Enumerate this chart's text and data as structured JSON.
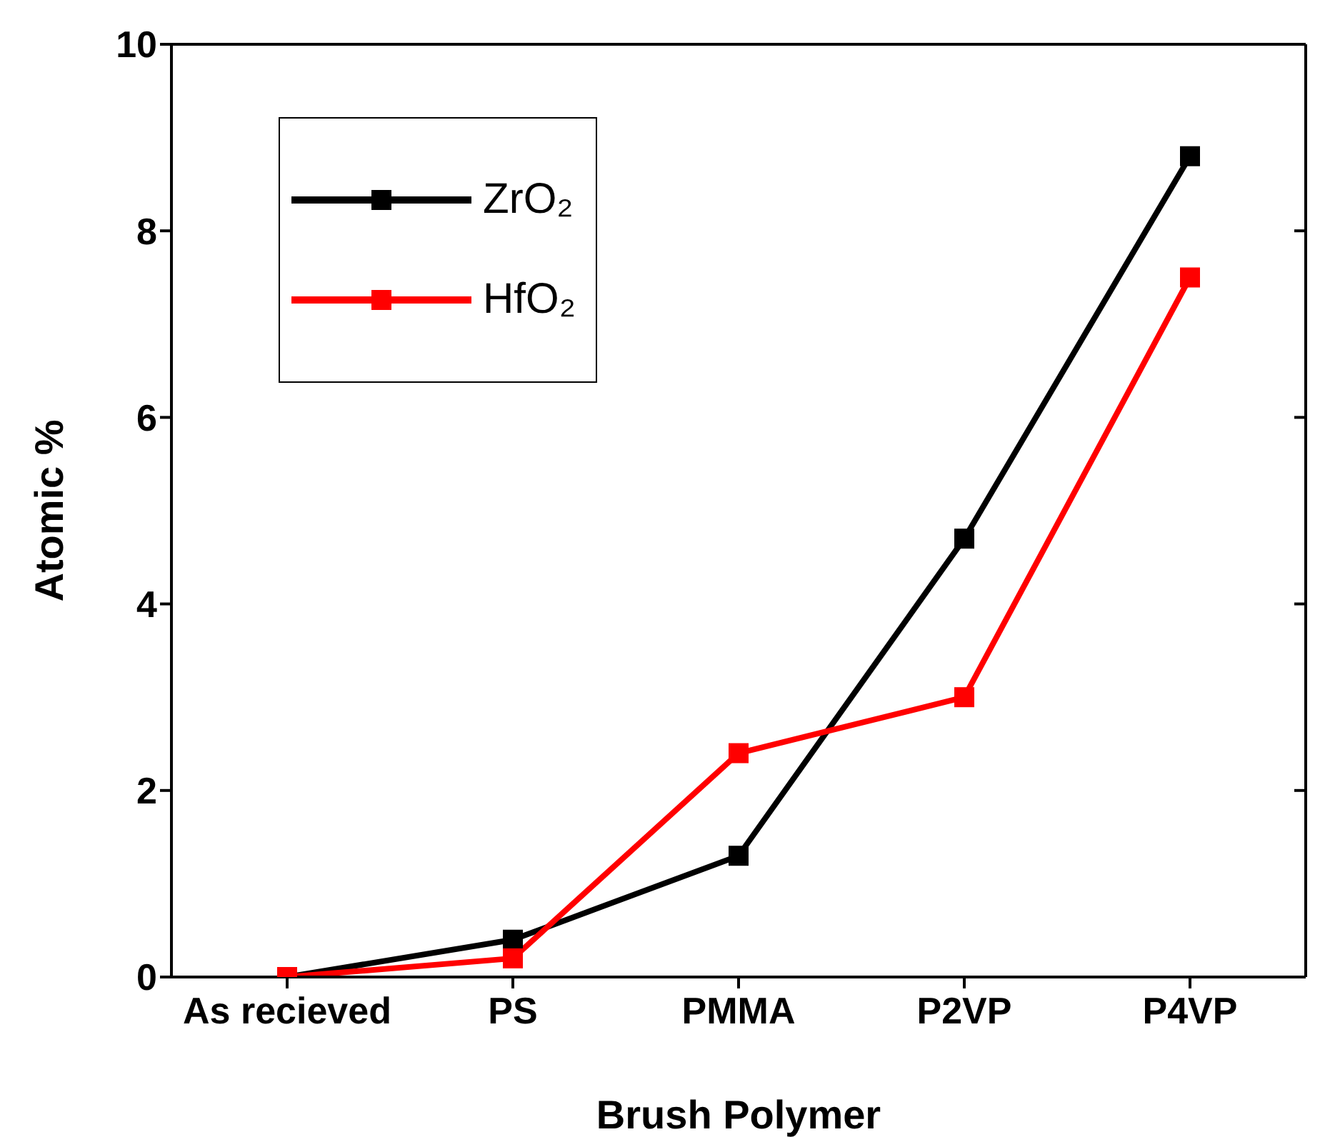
{
  "chart_data": {
    "type": "line",
    "xlabel": "Brush Polymer",
    "ylabel": "Atomic %",
    "categories": [
      "As recieved",
      "PS",
      "PMMA",
      "P2VP",
      "P4VP"
    ],
    "series": [
      {
        "name": "ZrO₂",
        "color": "#000000",
        "values": [
          0,
          0.4,
          1.3,
          4.7,
          8.8
        ]
      },
      {
        "name": "HfO₂",
        "color": "#ff0000",
        "values": [
          0,
          0.2,
          2.4,
          3.0,
          7.5
        ]
      }
    ],
    "ylim": [
      0,
      10
    ],
    "yticks": [
      0,
      2,
      4,
      6,
      8,
      10
    ],
    "legend": "top left",
    "marker": "square",
    "line_style": "solid",
    "grid": false
  }
}
